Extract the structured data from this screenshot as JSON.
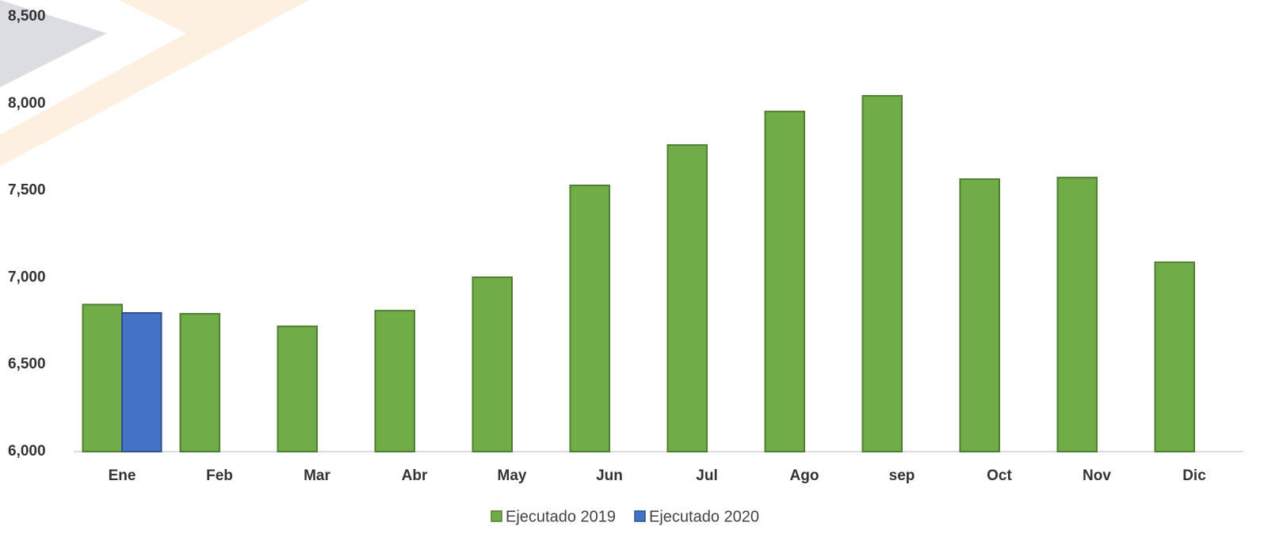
{
  "chart_data": {
    "type": "bar",
    "categories": [
      "Ene",
      "Feb",
      "Mar",
      "Abr",
      "May",
      "Jun",
      "Jul",
      "Ago",
      "sep",
      "Oct",
      "Nov",
      "Dic"
    ],
    "series": [
      {
        "name": "Ejecutado 2019",
        "color": "#70ad47",
        "values": [
          6845,
          6792,
          6720,
          6810,
          7002,
          7530,
          7762,
          7955,
          8045,
          7566,
          7575,
          7088
        ]
      },
      {
        "name": "Ejecutado 2020",
        "color": "#4472c4",
        "values": [
          6797,
          null,
          null,
          null,
          null,
          null,
          null,
          null,
          null,
          null,
          null,
          null
        ]
      }
    ],
    "ylim": [
      6000,
      8500
    ],
    "yticks": [
      {
        "value": 6000,
        "label": "6,000"
      },
      {
        "value": 6500,
        "label": "6,500"
      },
      {
        "value": 7000,
        "label": "7,000"
      },
      {
        "value": 7500,
        "label": "7,500"
      },
      {
        "value": 8000,
        "label": "8,000"
      },
      {
        "value": 8500,
        "label": "8,500"
      }
    ],
    "legend": "bottom",
    "grid": false
  }
}
